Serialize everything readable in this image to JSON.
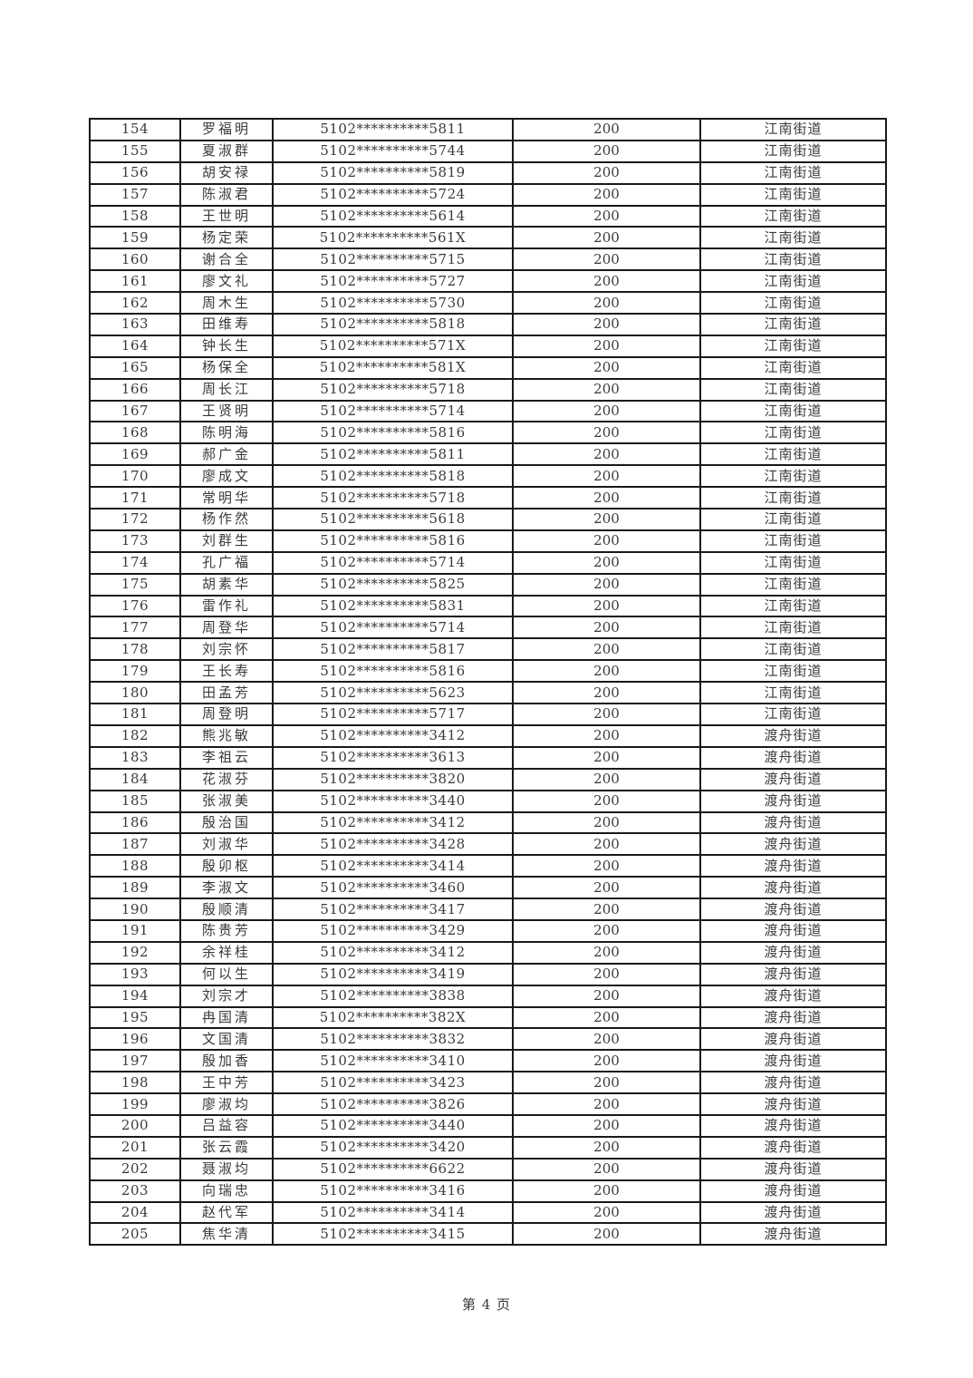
{
  "footer": {
    "text": "第 4 页"
  },
  "table": {
    "rows": [
      {
        "no": "154",
        "name": "罗福明",
        "id": "5102**********5811",
        "amount": "200",
        "district": "江南街道"
      },
      {
        "no": "155",
        "name": "夏淑群",
        "id": "5102**********5744",
        "amount": "200",
        "district": "江南街道"
      },
      {
        "no": "156",
        "name": "胡安禄",
        "id": "5102**********5819",
        "amount": "200",
        "district": "江南街道"
      },
      {
        "no": "157",
        "name": "陈淑君",
        "id": "5102**********5724",
        "amount": "200",
        "district": "江南街道"
      },
      {
        "no": "158",
        "name": "王世明",
        "id": "5102**********5614",
        "amount": "200",
        "district": "江南街道"
      },
      {
        "no": "159",
        "name": "杨定荣",
        "id": "5102**********561X",
        "amount": "200",
        "district": "江南街道"
      },
      {
        "no": "160",
        "name": "谢合全",
        "id": "5102**********5715",
        "amount": "200",
        "district": "江南街道"
      },
      {
        "no": "161",
        "name": "廖文礼",
        "id": "5102**********5727",
        "amount": "200",
        "district": "江南街道"
      },
      {
        "no": "162",
        "name": "周木生",
        "id": "5102**********5730",
        "amount": "200",
        "district": "江南街道"
      },
      {
        "no": "163",
        "name": "田维寿",
        "id": "5102**********5818",
        "amount": "200",
        "district": "江南街道"
      },
      {
        "no": "164",
        "name": "钟长生",
        "id": "5102**********571X",
        "amount": "200",
        "district": "江南街道"
      },
      {
        "no": "165",
        "name": "杨保全",
        "id": "5102**********581X",
        "amount": "200",
        "district": "江南街道"
      },
      {
        "no": "166",
        "name": "周长江",
        "id": "5102**********5718",
        "amount": "200",
        "district": "江南街道"
      },
      {
        "no": "167",
        "name": "王贤明",
        "id": "5102**********5714",
        "amount": "200",
        "district": "江南街道"
      },
      {
        "no": "168",
        "name": "陈明海",
        "id": "5102**********5816",
        "amount": "200",
        "district": "江南街道"
      },
      {
        "no": "169",
        "name": "郝广金",
        "id": "5102**********5811",
        "amount": "200",
        "district": "江南街道"
      },
      {
        "no": "170",
        "name": "廖成文",
        "id": "5102**********5818",
        "amount": "200",
        "district": "江南街道"
      },
      {
        "no": "171",
        "name": "常明华",
        "id": "5102**********5718",
        "amount": "200",
        "district": "江南街道"
      },
      {
        "no": "172",
        "name": "杨作然",
        "id": "5102**********5618",
        "amount": "200",
        "district": "江南街道"
      },
      {
        "no": "173",
        "name": "刘群生",
        "id": "5102**********5816",
        "amount": "200",
        "district": "江南街道"
      },
      {
        "no": "174",
        "name": "孔广福",
        "id": "5102**********5714",
        "amount": "200",
        "district": "江南街道"
      },
      {
        "no": "175",
        "name": "胡素华",
        "id": "5102**********5825",
        "amount": "200",
        "district": "江南街道"
      },
      {
        "no": "176",
        "name": "雷作礼",
        "id": "5102**********5831",
        "amount": "200",
        "district": "江南街道"
      },
      {
        "no": "177",
        "name": "周登华",
        "id": "5102**********5714",
        "amount": "200",
        "district": "江南街道"
      },
      {
        "no": "178",
        "name": "刘宗怀",
        "id": "5102**********5817",
        "amount": "200",
        "district": "江南街道"
      },
      {
        "no": "179",
        "name": "王长寿",
        "id": "5102**********5816",
        "amount": "200",
        "district": "江南街道"
      },
      {
        "no": "180",
        "name": "田孟芳",
        "id": "5102**********5623",
        "amount": "200",
        "district": "江南街道"
      },
      {
        "no": "181",
        "name": "周登明",
        "id": "5102**********5717",
        "amount": "200",
        "district": "江南街道"
      },
      {
        "no": "182",
        "name": "熊兆敏",
        "id": "5102**********3412",
        "amount": "200",
        "district": "渡舟街道"
      },
      {
        "no": "183",
        "name": "李祖云",
        "id": "5102**********3613",
        "amount": "200",
        "district": "渡舟街道"
      },
      {
        "no": "184",
        "name": "花淑芬",
        "id": "5102**********3820",
        "amount": "200",
        "district": "渡舟街道"
      },
      {
        "no": "185",
        "name": "张淑美",
        "id": "5102**********3440",
        "amount": "200",
        "district": "渡舟街道"
      },
      {
        "no": "186",
        "name": "殷治国",
        "id": "5102**********3412",
        "amount": "200",
        "district": "渡舟街道"
      },
      {
        "no": "187",
        "name": "刘淑华",
        "id": "5102**********3428",
        "amount": "200",
        "district": "渡舟街道"
      },
      {
        "no": "188",
        "name": "殷卯枢",
        "id": "5102**********3414",
        "amount": "200",
        "district": "渡舟街道"
      },
      {
        "no": "189",
        "name": "李淑文",
        "id": "5102**********3460",
        "amount": "200",
        "district": "渡舟街道"
      },
      {
        "no": "190",
        "name": "殷顺清",
        "id": "5102**********3417",
        "amount": "200",
        "district": "渡舟街道"
      },
      {
        "no": "191",
        "name": "陈贵芳",
        "id": "5102**********3429",
        "amount": "200",
        "district": "渡舟街道"
      },
      {
        "no": "192",
        "name": "余祥桂",
        "id": "5102**********3412",
        "amount": "200",
        "district": "渡舟街道"
      },
      {
        "no": "193",
        "name": "何以生",
        "id": "5102**********3419",
        "amount": "200",
        "district": "渡舟街道"
      },
      {
        "no": "194",
        "name": "刘宗才",
        "id": "5102**********3838",
        "amount": "200",
        "district": "渡舟街道"
      },
      {
        "no": "195",
        "name": "冉国清",
        "id": "5102**********382X",
        "amount": "200",
        "district": "渡舟街道"
      },
      {
        "no": "196",
        "name": "文国清",
        "id": "5102**********3832",
        "amount": "200",
        "district": "渡舟街道"
      },
      {
        "no": "197",
        "name": "殷加香",
        "id": "5102**********3410",
        "amount": "200",
        "district": "渡舟街道"
      },
      {
        "no": "198",
        "name": "王中芳",
        "id": "5102**********3423",
        "amount": "200",
        "district": "渡舟街道"
      },
      {
        "no": "199",
        "name": "廖淑均",
        "id": "5102**********3826",
        "amount": "200",
        "district": "渡舟街道"
      },
      {
        "no": "200",
        "name": "吕益容",
        "id": "5102**********3440",
        "amount": "200",
        "district": "渡舟街道"
      },
      {
        "no": "201",
        "name": "张云霞",
        "id": "5102**********3420",
        "amount": "200",
        "district": "渡舟街道"
      },
      {
        "no": "202",
        "name": "聂淑均",
        "id": "5102**********6622",
        "amount": "200",
        "district": "渡舟街道"
      },
      {
        "no": "203",
        "name": "向瑞忠",
        "id": "5102**********3416",
        "amount": "200",
        "district": "渡舟街道"
      },
      {
        "no": "204",
        "name": "赵代军",
        "id": "5102**********3414",
        "amount": "200",
        "district": "渡舟街道"
      },
      {
        "no": "205",
        "name": "焦华清",
        "id": "5102**********3415",
        "amount": "200",
        "district": "渡舟街道"
      }
    ]
  }
}
